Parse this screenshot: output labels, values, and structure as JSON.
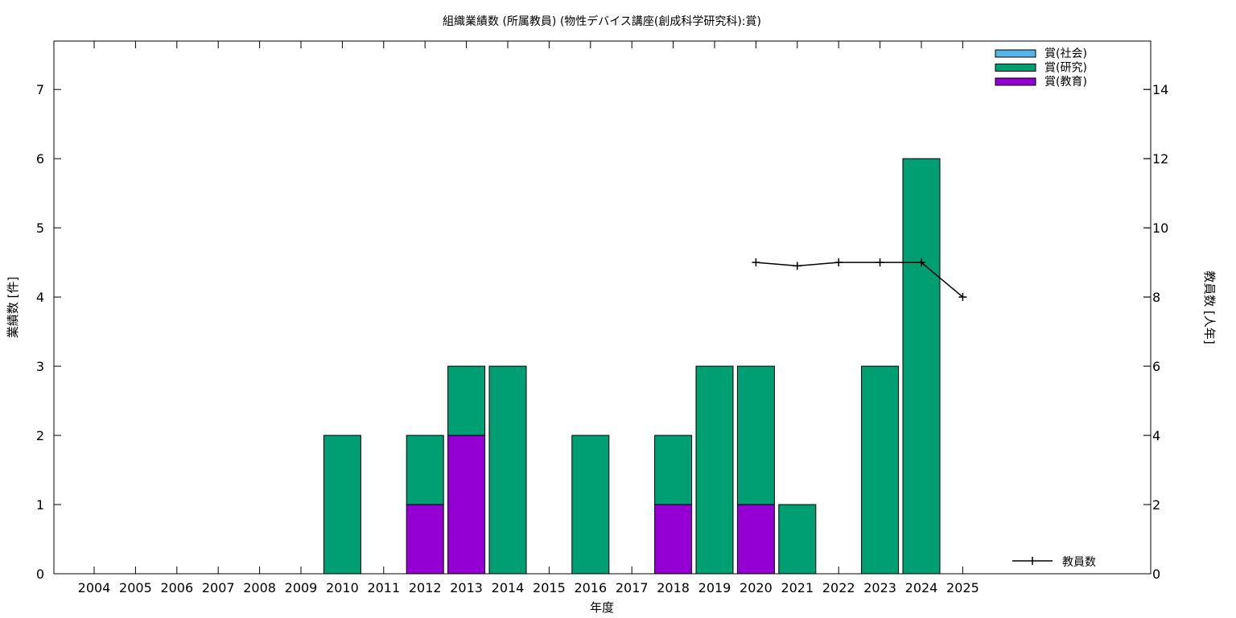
{
  "chart_data": {
    "type": "bar",
    "title": "組織業績数 (所属教員) (物性デバイス講座(創成科学研究科):賞)",
    "xlabel": "年度",
    "ylabel": "業績数 [件]",
    "y2label": "教員数 [人年]",
    "categories": [
      "2004",
      "2005",
      "2006",
      "2007",
      "2008",
      "2009",
      "2010",
      "2011",
      "2012",
      "2013",
      "2014",
      "2015",
      "2016",
      "2017",
      "2018",
      "2019",
      "2020",
      "2021",
      "2022",
      "2023",
      "2024",
      "2025"
    ],
    "ylim": [
      0,
      7.7
    ],
    "yticks": [
      0,
      1,
      2,
      3,
      4,
      5,
      6,
      7
    ],
    "y2lim": [
      0,
      15.4
    ],
    "y2ticks": [
      0,
      2,
      4,
      6,
      8,
      10,
      12,
      14
    ],
    "stacked": true,
    "series": [
      {
        "name": "賞(教育)",
        "color": "#9400d3",
        "values": [
          0,
          0,
          0,
          0,
          0,
          0,
          0,
          0,
          1,
          2,
          0,
          0,
          0,
          0,
          1,
          0,
          1,
          0,
          0,
          0,
          0,
          0
        ]
      },
      {
        "name": "賞(研究)",
        "color": "#009e73",
        "values": [
          0,
          0,
          0,
          0,
          0,
          0,
          2,
          0,
          1,
          1,
          3,
          0,
          2,
          0,
          1,
          3,
          2,
          1,
          0,
          3,
          6,
          0
        ]
      },
      {
        "name": "賞(社会)",
        "color": "#56b4e9",
        "values": [
          0,
          0,
          0,
          0,
          0,
          0,
          0,
          0,
          0,
          0,
          0,
          0,
          0,
          0,
          0,
          0,
          0,
          0,
          0,
          0,
          0,
          0
        ]
      }
    ],
    "legend_order": [
      "賞(社会)",
      "賞(研究)",
      "賞(教育)"
    ],
    "legend_position": "top-right",
    "line_series": {
      "name": "教員数",
      "axis": "y2",
      "color": "#000000",
      "x": [
        "2020",
        "2021",
        "2022",
        "2023",
        "2024",
        "2025"
      ],
      "values": [
        9,
        8.9,
        9,
        9,
        9,
        8
      ]
    },
    "line_legend_position": "bottom-right"
  }
}
